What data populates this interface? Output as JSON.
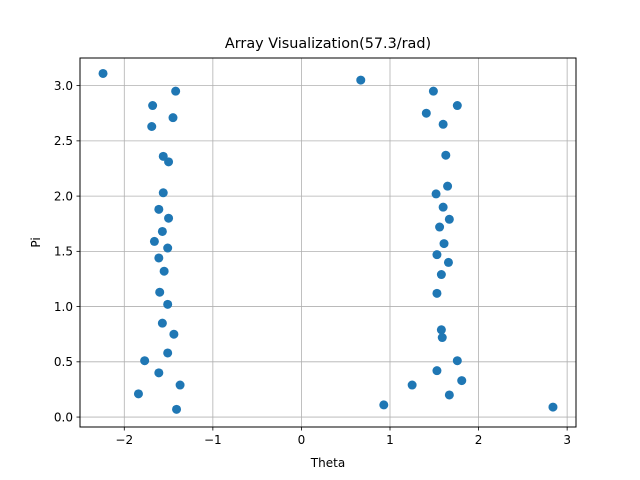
{
  "chart_data": {
    "type": "scatter",
    "title": "Array Visualization(57.3/rad)",
    "xlabel": "Theta",
    "ylabel": "Pi",
    "xlim": [
      -2.5,
      3.1
    ],
    "ylim": [
      -0.09,
      3.25
    ],
    "xticks": [
      -2,
      -1,
      0,
      1,
      2,
      3
    ],
    "xtick_labels": [
      "−2",
      "−1",
      "0",
      "1",
      "2",
      "3"
    ],
    "yticks": [
      0.0,
      0.5,
      1.0,
      1.5,
      2.0,
      2.5,
      3.0
    ],
    "ytick_labels": [
      "0.0",
      "0.5",
      "1.0",
      "1.5",
      "2.0",
      "2.5",
      "3.0"
    ],
    "grid": true,
    "color": "#1f77b4",
    "points": [
      {
        "x": -2.24,
        "y": 3.11
      },
      {
        "x": -1.68,
        "y": 2.82
      },
      {
        "x": -1.42,
        "y": 2.95
      },
      {
        "x": -1.45,
        "y": 2.71
      },
      {
        "x": -1.69,
        "y": 2.63
      },
      {
        "x": -1.56,
        "y": 2.36
      },
      {
        "x": -1.5,
        "y": 2.31
      },
      {
        "x": -1.56,
        "y": 2.03
      },
      {
        "x": -1.61,
        "y": 1.88
      },
      {
        "x": -1.5,
        "y": 1.8
      },
      {
        "x": -1.57,
        "y": 1.68
      },
      {
        "x": -1.66,
        "y": 1.59
      },
      {
        "x": -1.51,
        "y": 1.53
      },
      {
        "x": -1.61,
        "y": 1.44
      },
      {
        "x": -1.55,
        "y": 1.32
      },
      {
        "x": -1.6,
        "y": 1.13
      },
      {
        "x": -1.51,
        "y": 1.02
      },
      {
        "x": -1.57,
        "y": 0.85
      },
      {
        "x": -1.44,
        "y": 0.75
      },
      {
        "x": -1.51,
        "y": 0.58
      },
      {
        "x": -1.77,
        "y": 0.51
      },
      {
        "x": -1.61,
        "y": 0.4
      },
      {
        "x": -1.37,
        "y": 0.29
      },
      {
        "x": -1.84,
        "y": 0.21
      },
      {
        "x": -1.41,
        "y": 0.07
      },
      {
        "x": 0.67,
        "y": 3.05
      },
      {
        "x": 1.49,
        "y": 2.95
      },
      {
        "x": 1.76,
        "y": 2.82
      },
      {
        "x": 1.41,
        "y": 2.75
      },
      {
        "x": 1.6,
        "y": 2.65
      },
      {
        "x": 1.63,
        "y": 2.37
      },
      {
        "x": 1.65,
        "y": 2.09
      },
      {
        "x": 1.52,
        "y": 2.02
      },
      {
        "x": 1.6,
        "y": 1.9
      },
      {
        "x": 1.67,
        "y": 1.79
      },
      {
        "x": 1.56,
        "y": 1.72
      },
      {
        "x": 1.61,
        "y": 1.57
      },
      {
        "x": 1.53,
        "y": 1.47
      },
      {
        "x": 1.66,
        "y": 1.4
      },
      {
        "x": 1.58,
        "y": 1.29
      },
      {
        "x": 1.53,
        "y": 1.12
      },
      {
        "x": 1.58,
        "y": 0.79
      },
      {
        "x": 1.59,
        "y": 0.72
      },
      {
        "x": 1.76,
        "y": 0.51
      },
      {
        "x": 1.53,
        "y": 0.42
      },
      {
        "x": 1.81,
        "y": 0.33
      },
      {
        "x": 1.25,
        "y": 0.29
      },
      {
        "x": 1.67,
        "y": 0.2
      },
      {
        "x": 0.93,
        "y": 0.11
      },
      {
        "x": 2.84,
        "y": 0.09
      }
    ]
  }
}
